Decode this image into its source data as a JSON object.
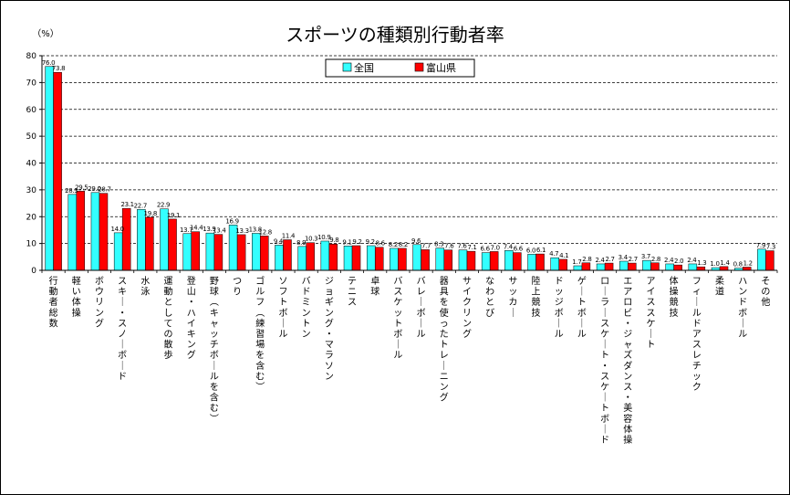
{
  "chart_data": {
    "type": "bar",
    "title": "スポーツの種類別行動者率",
    "ylabel": "（%）",
    "ylim": [
      0,
      80
    ],
    "yticks": [
      0,
      10,
      20,
      30,
      40,
      50,
      60,
      70,
      80
    ],
    "grid": true,
    "legend": "top-center",
    "colors": {
      "national": "#33ffff",
      "toyama": "#ff0000",
      "grid": "#000000"
    },
    "categories": [
      "行動者総数",
      "軽い体操",
      "ボウリング",
      "スキー・スノーボード",
      "水泳",
      "運動としての散歩",
      "登山・ハイキング",
      "野球（キャッチボールを含む）",
      "つり",
      "ゴルフ（練習場を含む）",
      "ソフトボール",
      "バドミントン",
      "ジョギング・マラソン",
      "テニス",
      "卓球",
      "バスケットボール",
      "バレーボール",
      "器具を使ったトレーニング",
      "サイクリング",
      "なわとび",
      "サッカー",
      "陸上競技",
      "ドッジボール",
      "ゲートボール",
      "ローラースケート・スケートボード",
      "エアロビ・ジャズダンス・美容体操",
      "アイススケート",
      "体操競技",
      "フィールドアスレチック",
      "柔道",
      "ハンドボール",
      "その他"
    ],
    "series": [
      {
        "name": "全国",
        "values": [
          76.0,
          28.3,
          29.0,
          14.0,
          22.7,
          22.9,
          13.7,
          13.9,
          16.9,
          13.8,
          9.4,
          8.9,
          10.9,
          9.1,
          9.2,
          8.2,
          9.6,
          8.3,
          7.6,
          6.6,
          7.4,
          6.0,
          4.7,
          1.7,
          2.4,
          3.4,
          3.7,
          2.4,
          2.4,
          1.0,
          0.8,
          7.9
        ]
      },
      {
        "name": "富山県",
        "values": [
          73.8,
          29.5,
          28.7,
          23.1,
          19.8,
          19.1,
          14.4,
          13.4,
          13.3,
          12.8,
          11.4,
          10.3,
          9.8,
          9.2,
          8.6,
          8.2,
          7.7,
          7.6,
          7.1,
          7.0,
          6.6,
          6.1,
          4.1,
          2.8,
          2.7,
          2.7,
          2.8,
          2.0,
          1.3,
          1.4,
          1.2,
          7.3
        ]
      }
    ],
    "value_labels": [
      [
        "76.0",
        "73.8"
      ],
      [
        "28.3",
        "29.5"
      ],
      [
        "29.0",
        "28.7"
      ],
      [
        "14.0",
        "23.1"
      ],
      [
        "22.7",
        "19.8"
      ],
      [
        "22.9",
        "19.1"
      ],
      [
        "13.7",
        "14.4"
      ],
      [
        "13.9",
        "13.4"
      ],
      [
        "16.9",
        "13.3"
      ],
      [
        "13.8",
        "12.8"
      ],
      [
        "9.4",
        "11.4"
      ],
      [
        "8.9",
        "10.3"
      ],
      [
        "10.9",
        "9.8"
      ],
      [
        "9.1",
        "9.2"
      ],
      [
        "9.2",
        "8.6"
      ],
      [
        "8.2",
        "8.2"
      ],
      [
        "9.6",
        "7.7"
      ],
      [
        "8.3",
        "7.6"
      ],
      [
        "7.6",
        "7.1"
      ],
      [
        "6.6",
        "7.0"
      ],
      [
        "7.4",
        "6.6"
      ],
      [
        "6.0",
        "6.1"
      ],
      [
        "4.7",
        "4.1"
      ],
      [
        "1.7",
        "2.8"
      ],
      [
        "2.4",
        "2.7"
      ],
      [
        "3.4",
        "2.7"
      ],
      [
        "3.7",
        "2.8"
      ],
      [
        "2.4",
        "2.0"
      ],
      [
        "2.4",
        "1.3"
      ],
      [
        "1.0",
        "1.4"
      ],
      [
        "0.8",
        "1.2"
      ],
      [
        "7.9",
        "7.3"
      ]
    ]
  }
}
